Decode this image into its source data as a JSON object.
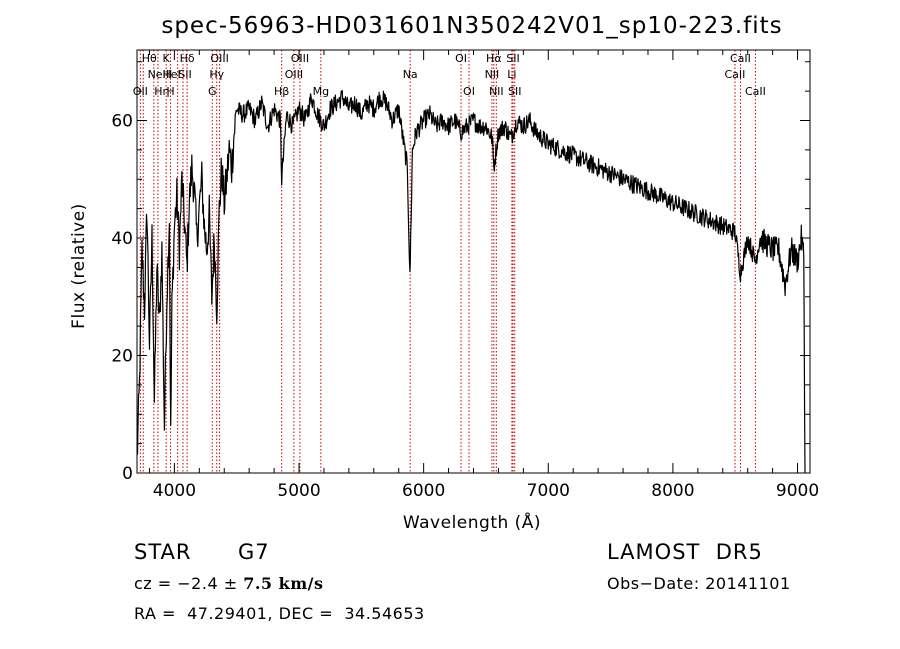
{
  "chart_data": {
    "type": "line",
    "title": "spec-56963-HD031601N350242V01_sp10-223.fits",
    "xlabel": "Wavelength (Å)",
    "ylabel": "Flux (relative)",
    "xlim": [
      3700,
      9100
    ],
    "ylim": [
      0,
      72
    ],
    "xticks": [
      4000,
      5000,
      6000,
      7000,
      8000,
      9000
    ],
    "xtick_labels": [
      "4000",
      "5000",
      "6000",
      "7000",
      "8000",
      "9000"
    ],
    "yticks": [
      0,
      20,
      40,
      60
    ],
    "ytick_labels": [
      "0",
      "20",
      "40",
      "60"
    ],
    "grid": false,
    "series": [
      {
        "x": [
          3700,
          3720,
          3740,
          3760,
          3780,
          3800,
          3820,
          3840,
          3860,
          3880,
          3900,
          3920,
          3940,
          3960,
          3970,
          3980,
          4000,
          4020,
          4040,
          4060,
          4080,
          4100,
          4120,
          4140,
          4160,
          4180,
          4200,
          4220,
          4240,
          4260,
          4280,
          4300,
          4320,
          4340,
          4360,
          4380,
          4400,
          4420,
          4440,
          4460,
          4480,
          4500,
          4550,
          4600,
          4650,
          4700,
          4750,
          4800,
          4850,
          4861,
          4900,
          4950,
          5000,
          5050,
          5100,
          5150,
          5200,
          5250,
          5300,
          5350,
          5400,
          5450,
          5500,
          5550,
          5600,
          5650,
          5700,
          5750,
          5800,
          5840,
          5870,
          5890,
          5896,
          5910,
          5940,
          6000,
          6050,
          6100,
          6150,
          6200,
          6250,
          6300,
          6350,
          6400,
          6450,
          6500,
          6550,
          6563,
          6600,
          6650,
          6700,
          6750,
          6800,
          6850,
          6900,
          6950,
          7000,
          7100,
          7200,
          7300,
          7400,
          7500,
          7600,
          7700,
          7800,
          7900,
          8000,
          8100,
          8200,
          8300,
          8400,
          8500,
          8542,
          8600,
          8662,
          8700,
          8800,
          8850,
          8900,
          8950,
          9000,
          9030,
          9050,
          9060
        ],
        "y": [
          2,
          15,
          38,
          28,
          45,
          22,
          40,
          12,
          35,
          25,
          38,
          8,
          30,
          44,
          6,
          28,
          42,
          47,
          38,
          50,
          43,
          35,
          46,
          52,
          48,
          40,
          45,
          50,
          42,
          38,
          44,
          30,
          40,
          28,
          45,
          52,
          46,
          50,
          55,
          52,
          58,
          62,
          61,
          62,
          60,
          63,
          59,
          62,
          60,
          50,
          61,
          59,
          62,
          60,
          64,
          61,
          59,
          62,
          63,
          64,
          62,
          63,
          61,
          63,
          62,
          64,
          63,
          60,
          62,
          56,
          52,
          33,
          40,
          55,
          58,
          60,
          61,
          59,
          60,
          59,
          60,
          58,
          59,
          60,
          59,
          59,
          57,
          52,
          58,
          59,
          57,
          60,
          59,
          60,
          58,
          57,
          56,
          55,
          54,
          53,
          52,
          51,
          50,
          49,
          48,
          47,
          46,
          45,
          44,
          43,
          42,
          41,
          34,
          40,
          36,
          40,
          38,
          38,
          32,
          38,
          36,
          40,
          37,
          0
        ]
      }
    ],
    "lines": [
      {
        "w": 3727,
        "label": "OII",
        "row": 2,
        "dx": 0
      },
      {
        "w": 3750,
        "label": "Hθ",
        "row": 0,
        "dx": 6
      },
      {
        "w": 3835,
        "label": "Hη",
        "row": 2,
        "dx": 8
      },
      {
        "w": 3868,
        "label": "NeIII",
        "row": 1,
        "dx": 2
      },
      {
        "w": 3934,
        "label": "K",
        "row": 0,
        "dx": 0
      },
      {
        "w": 3969,
        "label": "H",
        "row": 2,
        "dx": 0
      },
      {
        "w": 4026,
        "label": "HeI",
        "row": 1,
        "dx": -6
      },
      {
        "w": 4069,
        "label": "SII",
        "row": 1,
        "dx": 2
      },
      {
        "w": 4102,
        "label": "Hδ",
        "row": 0,
        "dx": 0
      },
      {
        "w": 4304,
        "label": "G",
        "row": 2,
        "dx": 0
      },
      {
        "w": 4340,
        "label": "Hγ",
        "row": 1,
        "dx": 0
      },
      {
        "w": 4363,
        "label": "OIII",
        "row": 0,
        "dx": 0
      },
      {
        "w": 4861,
        "label": "Hβ",
        "row": 2,
        "dx": 0
      },
      {
        "w": 4959,
        "label": "OIII",
        "row": 1,
        "dx": 0
      },
      {
        "w": 5007,
        "label": "OIII",
        "row": 0,
        "dx": 0
      },
      {
        "w": 5175,
        "label": "Mg",
        "row": 2,
        "dx": 0
      },
      {
        "w": 5892,
        "label": "Na",
        "row": 1,
        "dx": 0
      },
      {
        "w": 6300,
        "label": "OI",
        "row": 0,
        "dx": 0
      },
      {
        "w": 6364,
        "label": "OI",
        "row": 2,
        "dx": 0
      },
      {
        "w": 6548,
        "label": "NII",
        "row": 1,
        "dx": 0
      },
      {
        "w": 6563,
        "label": "Hα",
        "row": 0,
        "dx": 0
      },
      {
        "w": 6583,
        "label": "NII",
        "row": 2,
        "dx": 0
      },
      {
        "w": 6708,
        "label": "Li",
        "row": 1,
        "dx": 0
      },
      {
        "w": 6717,
        "label": "SII",
        "row": 0,
        "dx": 0
      },
      {
        "w": 6731,
        "label": "SII",
        "row": 2,
        "dx": 0
      },
      {
        "w": 8498,
        "label": "CaII",
        "row": 1,
        "dx": 0
      },
      {
        "w": 8542,
        "label": "CaII",
        "row": 0,
        "dx": 0
      },
      {
        "w": 8662,
        "label": "CaII",
        "row": 2,
        "dx": 0
      }
    ]
  },
  "info": {
    "obj_class": "STAR",
    "subclass": "G7",
    "survey": "LAMOST  DR5",
    "cz_prefix": "cz = −2.4 ± ",
    "cz_bold": "7.5 km/s",
    "obs_date": "Obs−Date: 20141101",
    "coords": "RA =  47.29401, DEC =  34.54653"
  },
  "colors": {
    "spectrum": "#000000",
    "line_markers": "#cc0000",
    "axes": "#000000",
    "background": "#ffffff"
  }
}
